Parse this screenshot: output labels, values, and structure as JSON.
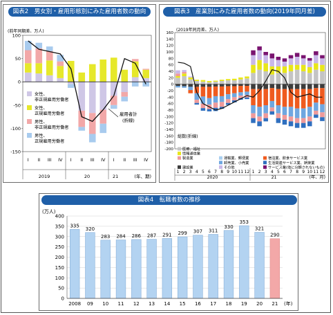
{
  "fig2": {
    "header": "図表2　男女別・雇用形態別にみた雇用者数の動向",
    "unit_label": "(前年同期差、万人)",
    "callout": [
      "雇用者計",
      "(折線)"
    ],
    "axis_note": "(年、期)",
    "chart_data": {
      "type": "bar",
      "stacked": true,
      "quarters": [
        "I",
        "II",
        "III",
        "IV",
        "I",
        "II",
        "III",
        "IV",
        "I",
        "II",
        "III",
        "IV"
      ],
      "years": [
        {
          "label": "2019",
          "span": [
            0,
            3
          ]
        },
        {
          "label": "20",
          "span": [
            4,
            7
          ]
        },
        {
          "label": "21",
          "span": [
            8,
            11
          ]
        }
      ],
      "ylim": [
        -150,
        100
      ],
      "yticks": [
        100,
        50,
        0,
        -50,
        -100,
        -150
      ],
      "series": [
        {
          "name": "女性、非正規雇用労働者",
          "color": "#cfc7e6",
          "values": [
            20,
            18,
            14,
            8,
            -5,
            -62,
            -67,
            -60,
            -30,
            -22,
            10,
            8
          ]
        },
        {
          "name": "女性、正規雇用労働者",
          "color": "#e6e82a",
          "values": [
            20,
            22,
            32,
            26,
            45,
            20,
            38,
            48,
            52,
            26,
            34,
            18
          ]
        },
        {
          "name": "男性、非正規雇用労働者",
          "color": "#f2a8a8",
          "values": [
            28,
            32,
            20,
            10,
            0,
            -35,
            -45,
            -30,
            -20,
            -10,
            5,
            2
          ]
        },
        {
          "name": "男性、正規雇用労働者",
          "color": "#a8cbee",
          "values": [
            20,
            12,
            10,
            14,
            -8,
            -8,
            -18,
            -20,
            -8,
            -10,
            -10,
            -10
          ]
        }
      ],
      "line": {
        "name": "雇用者計",
        "values": [
          88,
          70,
          65,
          60,
          28,
          -75,
          -85,
          -60,
          -30,
          50,
          40,
          -5
        ]
      }
    }
  },
  "fig3": {
    "header": "図表3　産業別にみた雇用者数の動向(2019年同月差)",
    "unit_label": "(2019年同月差、万人)",
    "line_label": "総数(折線)",
    "axis_note": "(年、月)",
    "chart_data": {
      "type": "bar",
      "stacked": true,
      "months": [
        "1",
        "2",
        "3",
        "4",
        "5",
        "6",
        "7",
        "8",
        "9",
        "10",
        "11",
        "12",
        "1",
        "2",
        "3",
        "4",
        "5",
        "6",
        "7",
        "8",
        "9",
        "10",
        "11",
        "12"
      ],
      "years": [
        {
          "label": "2020",
          "span": [
            0,
            11
          ]
        },
        {
          "label": "21",
          "span": [
            12,
            23
          ]
        }
      ],
      "ylim": [
        -200,
        160
      ],
      "yticks": [
        160,
        140,
        120,
        100,
        80,
        60,
        40,
        20,
        0,
        -20,
        -40,
        -60,
        -80,
        -100,
        -120,
        -140,
        -160,
        -180,
        -200
      ],
      "legend": [
        {
          "name": "医療、福祉",
          "color": "#c4c4c4"
        },
        {
          "name": "情報通信業",
          "color": "#e8e61a"
        },
        {
          "name": "運輸業、郵便業",
          "color": "#a9cff0"
        },
        {
          "name": "宿泊業、飲食サービス業",
          "color": "#ef5b1f"
        },
        {
          "name": "製造業",
          "color": "#ef9a9a"
        },
        {
          "name": "卸売業、小売業",
          "color": "#6fa7e0"
        },
        {
          "name": "生活関連サービス業、娯楽業",
          "color": "#2f6fbf"
        },
        {
          "name": "建設業",
          "color": "#3c3c3c"
        },
        {
          "name": "その他",
          "color": "#c9b8e8"
        },
        {
          "name": "サービス業(他に分類されないもの)",
          "color": "#7a1470"
        }
      ],
      "pos_bars": [
        [
          [
            20,
            "#c4c4c4"
          ],
          [
            5,
            "#e8e61a"
          ],
          [
            8,
            "#ef9a9a"
          ],
          [
            10,
            "#c9b8e8"
          ]
        ],
        [
          [
            25,
            "#c4c4c4"
          ],
          [
            8,
            "#e8e61a"
          ],
          [
            5,
            "#ef9a9a"
          ],
          [
            6,
            "#c9b8e8"
          ]
        ],
        [
          [
            15,
            "#c4c4c4"
          ],
          [
            6,
            "#e8e61a"
          ],
          [
            3,
            "#c9b8e8"
          ]
        ],
        [
          [
            10,
            "#c4c4c4"
          ],
          [
            4,
            "#e8e61a"
          ]
        ],
        [
          [
            8,
            "#c4c4c4"
          ],
          [
            5,
            "#e8e61a"
          ]
        ],
        [
          [
            6,
            "#c4c4c4"
          ],
          [
            4,
            "#e8e61a"
          ]
        ],
        [
          [
            8,
            "#c4c4c4"
          ],
          [
            3,
            "#e8e61a"
          ]
        ],
        [
          [
            10,
            "#c4c4c4"
          ],
          [
            4,
            "#e8e61a"
          ]
        ],
        [
          [
            12,
            "#c4c4c4"
          ],
          [
            4,
            "#e8e61a"
          ]
        ],
        [
          [
            12,
            "#c4c4c4"
          ],
          [
            5,
            "#e8e61a"
          ]
        ],
        [
          [
            15,
            "#c4c4c4"
          ],
          [
            6,
            "#e8e61a"
          ]
        ],
        [
          [
            18,
            "#c4c4c4"
          ],
          [
            6,
            "#e8e61a"
          ]
        ],
        [
          [
            35,
            "#c4c4c4"
          ],
          [
            25,
            "#e8e61a"
          ],
          [
            30,
            "#c9b8e8"
          ],
          [
            15,
            "#7a1470"
          ]
        ],
        [
          [
            45,
            "#c4c4c4"
          ],
          [
            30,
            "#e8e61a"
          ],
          [
            30,
            "#c9b8e8"
          ],
          [
            12,
            "#7a1470"
          ]
        ],
        [
          [
            40,
            "#c4c4c4"
          ],
          [
            25,
            "#e8e61a"
          ],
          [
            25,
            "#c9b8e8"
          ],
          [
            10,
            "#7a1470"
          ]
        ],
        [
          [
            30,
            "#c4c4c4"
          ],
          [
            25,
            "#e8e61a"
          ],
          [
            25,
            "#c9b8e8"
          ],
          [
            15,
            "#7a1470"
          ]
        ],
        [
          [
            35,
            "#c4c4c4"
          ],
          [
            20,
            "#e8e61a"
          ],
          [
            20,
            "#c9b8e8"
          ],
          [
            10,
            "#7a1470"
          ]
        ],
        [
          [
            35,
            "#c4c4c4"
          ],
          [
            20,
            "#e8e61a"
          ],
          [
            15,
            "#c9b8e8"
          ],
          [
            10,
            "#7a1470"
          ]
        ],
        [
          [
            40,
            "#c4c4c4"
          ],
          [
            20,
            "#e8e61a"
          ],
          [
            20,
            "#c9b8e8"
          ],
          [
            10,
            "#7a1470"
          ]
        ],
        [
          [
            45,
            "#c4c4c4"
          ],
          [
            15,
            "#e8e61a"
          ],
          [
            25,
            "#c9b8e8"
          ],
          [
            12,
            "#7a1470"
          ]
        ],
        [
          [
            40,
            "#c4c4c4"
          ],
          [
            20,
            "#e8e61a"
          ],
          [
            20,
            "#c9b8e8"
          ],
          [
            10,
            "#7a1470"
          ]
        ],
        [
          [
            35,
            "#c4c4c4"
          ],
          [
            18,
            "#e8e61a"
          ],
          [
            20,
            "#c9b8e8"
          ],
          [
            8,
            "#7a1470"
          ]
        ],
        [
          [
            45,
            "#c4c4c4"
          ],
          [
            20,
            "#e8e61a"
          ],
          [
            25,
            "#c9b8e8"
          ],
          [
            12,
            "#7a1470"
          ]
        ],
        [
          [
            40,
            "#c4c4c4"
          ],
          [
            20,
            "#e8e61a"
          ],
          [
            20,
            "#c9b8e8"
          ],
          [
            10,
            "#7a1470"
          ]
        ]
      ],
      "neg_bars": [
        [
          [
            5,
            "#3c3c3c"
          ],
          [
            5,
            "#6fa7e0"
          ]
        ],
        [
          [
            6,
            "#3c3c3c"
          ],
          [
            5,
            "#6fa7e0"
          ]
        ],
        [
          [
            8,
            "#3c3c3c"
          ],
          [
            10,
            "#6fa7e0"
          ],
          [
            10,
            "#ef5b1f"
          ]
        ],
        [
          [
            8,
            "#3c3c3c"
          ],
          [
            20,
            "#ef5b1f"
          ],
          [
            20,
            "#6fa7e0"
          ],
          [
            10,
            "#ef9a9a"
          ],
          [
            5,
            "#2f6fbf"
          ]
        ],
        [
          [
            8,
            "#3c3c3c"
          ],
          [
            30,
            "#ef5b1f"
          ],
          [
            22,
            "#6fa7e0"
          ],
          [
            14,
            "#ef9a9a"
          ],
          [
            8,
            "#2f6fbf"
          ]
        ],
        [
          [
            8,
            "#3c3c3c"
          ],
          [
            35,
            "#ef5b1f"
          ],
          [
            20,
            "#6fa7e0"
          ],
          [
            14,
            "#ef9a9a"
          ],
          [
            7,
            "#2f6fbf"
          ]
        ],
        [
          [
            7,
            "#3c3c3c"
          ],
          [
            30,
            "#ef5b1f"
          ],
          [
            20,
            "#6fa7e0"
          ],
          [
            16,
            "#ef9a9a"
          ],
          [
            10,
            "#2f6fbf"
          ]
        ],
        [
          [
            7,
            "#3c3c3c"
          ],
          [
            30,
            "#ef5b1f"
          ],
          [
            18,
            "#6fa7e0"
          ],
          [
            15,
            "#ef9a9a"
          ],
          [
            6,
            "#2f6fbf"
          ]
        ],
        [
          [
            6,
            "#3c3c3c"
          ],
          [
            25,
            "#ef5b1f"
          ],
          [
            15,
            "#6fa7e0"
          ],
          [
            12,
            "#ef9a9a"
          ],
          [
            6,
            "#2f6fbf"
          ]
        ],
        [
          [
            6,
            "#3c3c3c"
          ],
          [
            22,
            "#ef5b1f"
          ],
          [
            12,
            "#6fa7e0"
          ],
          [
            10,
            "#ef9a9a"
          ],
          [
            6,
            "#2f6fbf"
          ]
        ],
        [
          [
            5,
            "#3c3c3c"
          ],
          [
            20,
            "#ef5b1f"
          ],
          [
            10,
            "#6fa7e0"
          ],
          [
            8,
            "#ef9a9a"
          ],
          [
            5,
            "#2f6fbf"
          ]
        ],
        [
          [
            5,
            "#3c3c3c"
          ],
          [
            18,
            "#ef5b1f"
          ],
          [
            10,
            "#6fa7e0"
          ],
          [
            8,
            "#ef9a9a"
          ],
          [
            5,
            "#2f6fbf"
          ]
        ],
        [
          [
            15,
            "#3c3c3c"
          ],
          [
            50,
            "#ef5b1f"
          ],
          [
            25,
            "#6fa7e0"
          ],
          [
            15,
            "#ef9a9a"
          ],
          [
            15,
            "#2f6fbf"
          ]
        ],
        [
          [
            15,
            "#3c3c3c"
          ],
          [
            55,
            "#ef5b1f"
          ],
          [
            30,
            "#6fa7e0"
          ],
          [
            15,
            "#ef9a9a"
          ],
          [
            15,
            "#2f6fbf"
          ]
        ],
        [
          [
            15,
            "#3c3c3c"
          ],
          [
            50,
            "#ef5b1f"
          ],
          [
            25,
            "#6fa7e0"
          ],
          [
            15,
            "#ef9a9a"
          ],
          [
            10,
            "#2f6fbf"
          ]
        ],
        [
          [
            12,
            "#3c3c3c"
          ],
          [
            40,
            "#ef5b1f"
          ],
          [
            20,
            "#6fa7e0"
          ],
          [
            12,
            "#ef9a9a"
          ],
          [
            10,
            "#2f6fbf"
          ]
        ],
        [
          [
            15,
            "#3c3c3c"
          ],
          [
            50,
            "#ef5b1f"
          ],
          [
            25,
            "#6fa7e0"
          ],
          [
            15,
            "#ef9a9a"
          ],
          [
            15,
            "#2f6fbf"
          ]
        ],
        [
          [
            15,
            "#3c3c3c"
          ],
          [
            55,
            "#ef5b1f"
          ],
          [
            25,
            "#6fa7e0"
          ],
          [
            15,
            "#ef9a9a"
          ],
          [
            15,
            "#2f6fbf"
          ]
        ],
        [
          [
            15,
            "#3c3c3c"
          ],
          [
            55,
            "#ef5b1f"
          ],
          [
            30,
            "#6fa7e0"
          ],
          [
            15,
            "#ef9a9a"
          ],
          [
            15,
            "#2f6fbf"
          ]
        ],
        [
          [
            15,
            "#3c3c3c"
          ],
          [
            60,
            "#ef5b1f"
          ],
          [
            30,
            "#6fa7e0"
          ],
          [
            15,
            "#ef9a9a"
          ],
          [
            15,
            "#2f6fbf"
          ]
        ],
        [
          [
            15,
            "#3c3c3c"
          ],
          [
            60,
            "#ef5b1f"
          ],
          [
            30,
            "#6fa7e0"
          ],
          [
            15,
            "#ef9a9a"
          ],
          [
            15,
            "#2f6fbf"
          ]
        ],
        [
          [
            15,
            "#3c3c3c"
          ],
          [
            55,
            "#ef5b1f"
          ],
          [
            30,
            "#6fa7e0"
          ],
          [
            15,
            "#ef9a9a"
          ],
          [
            15,
            "#2f6fbf"
          ]
        ],
        [
          [
            12,
            "#3c3c3c"
          ],
          [
            45,
            "#ef5b1f"
          ],
          [
            25,
            "#6fa7e0"
          ],
          [
            12,
            "#ef9a9a"
          ],
          [
            10,
            "#2f6fbf"
          ]
        ],
        [
          [
            12,
            "#3c3c3c"
          ],
          [
            50,
            "#ef5b1f"
          ],
          [
            25,
            "#6fa7e0"
          ],
          [
            15,
            "#ef9a9a"
          ],
          [
            12,
            "#2f6fbf"
          ]
        ]
      ],
      "line": {
        "name": "総数",
        "values": [
          68,
          65,
          55,
          -25,
          -60,
          -70,
          -80,
          -75,
          -65,
          -55,
          -45,
          -35,
          -40,
          -20,
          10,
          45,
          40,
          20,
          -25,
          -40,
          -35,
          -30,
          -40,
          -40
        ]
      }
    }
  },
  "fig4": {
    "header": "図表4　転職者数の推移",
    "unit": "(万人)",
    "axis_note": "(年)",
    "chart_data": {
      "type": "bar",
      "categories": [
        "2008",
        "09",
        "10",
        "11",
        "12",
        "13",
        "14",
        "15",
        "16",
        "17",
        "18",
        "19",
        "20",
        "21"
      ],
      "values": [
        335,
        320,
        283,
        284,
        286,
        287,
        291,
        299,
        307,
        311,
        330,
        353,
        321,
        290
      ],
      "ylim": [
        0,
        400
      ],
      "yticks": [
        0,
        50,
        100,
        150,
        200,
        250,
        300,
        350,
        400
      ],
      "bar_color": "#b3d3f1",
      "highlight_color": "#f3a8a8"
    }
  }
}
